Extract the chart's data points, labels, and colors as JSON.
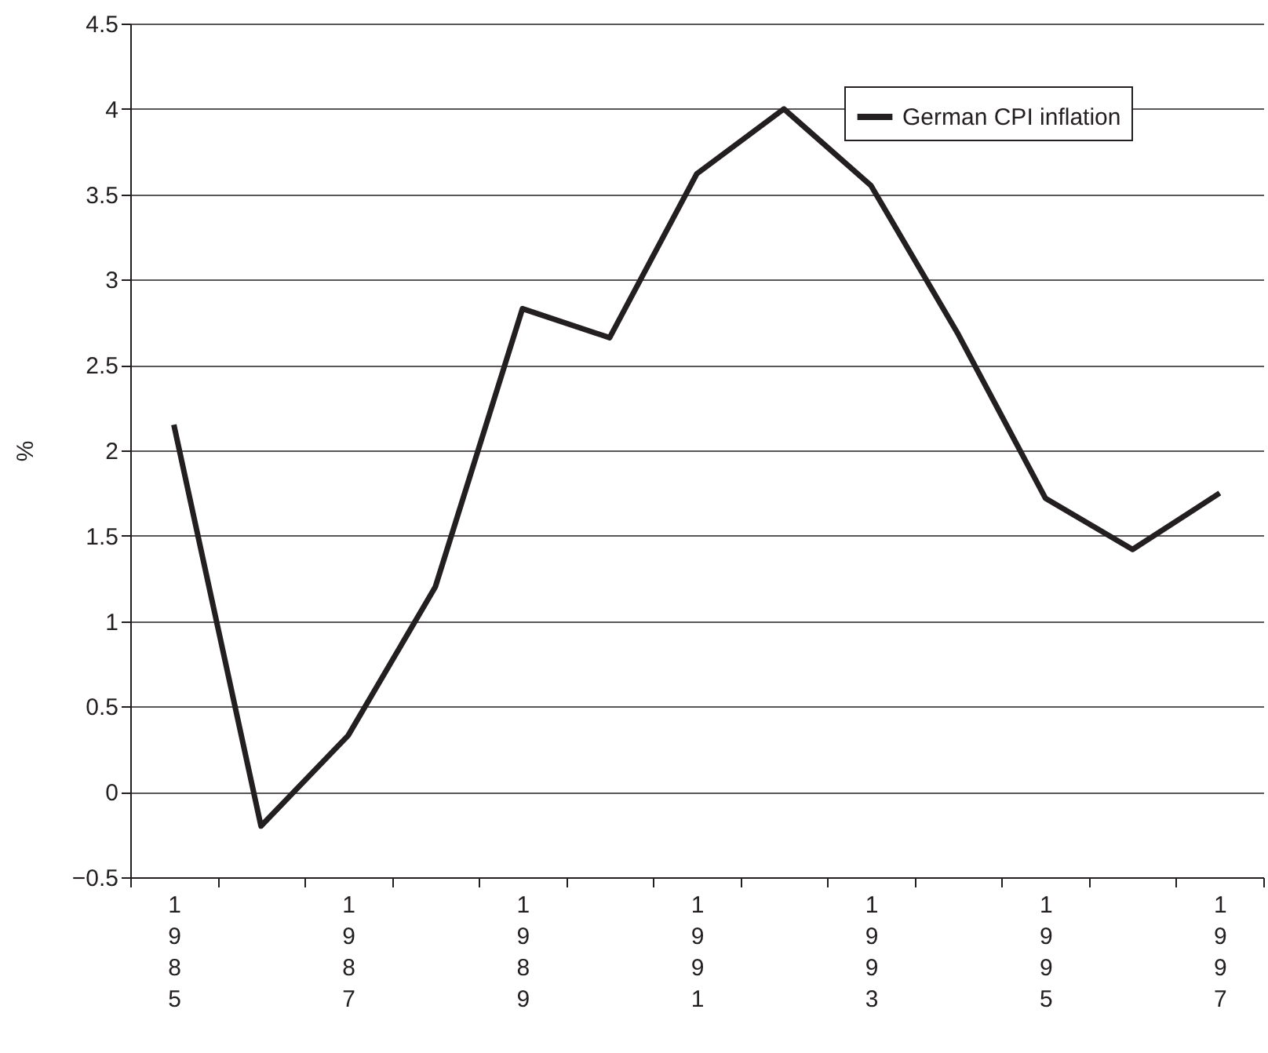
{
  "chart_data": {
    "type": "line",
    "ylabel": "%",
    "categories": [
      "1985",
      null,
      "1987",
      null,
      "1989",
      null,
      "1991",
      null,
      "1993",
      null,
      "1995",
      null,
      "1997"
    ],
    "series": [
      {
        "name": "German CPI inflation",
        "color": "#231f20",
        "values": [
          2.15,
          -0.2,
          0.33,
          1.2,
          2.83,
          2.66,
          3.62,
          4.0,
          3.55,
          2.68,
          1.72,
          1.42,
          1.75
        ]
      }
    ],
    "ylim": [
      -0.5,
      4.5
    ],
    "yticks": [
      -0.5,
      0,
      0.5,
      1,
      1.5,
      2,
      2.5,
      3,
      3.5,
      4,
      4.5
    ],
    "grid": "y",
    "legend": "top right"
  }
}
